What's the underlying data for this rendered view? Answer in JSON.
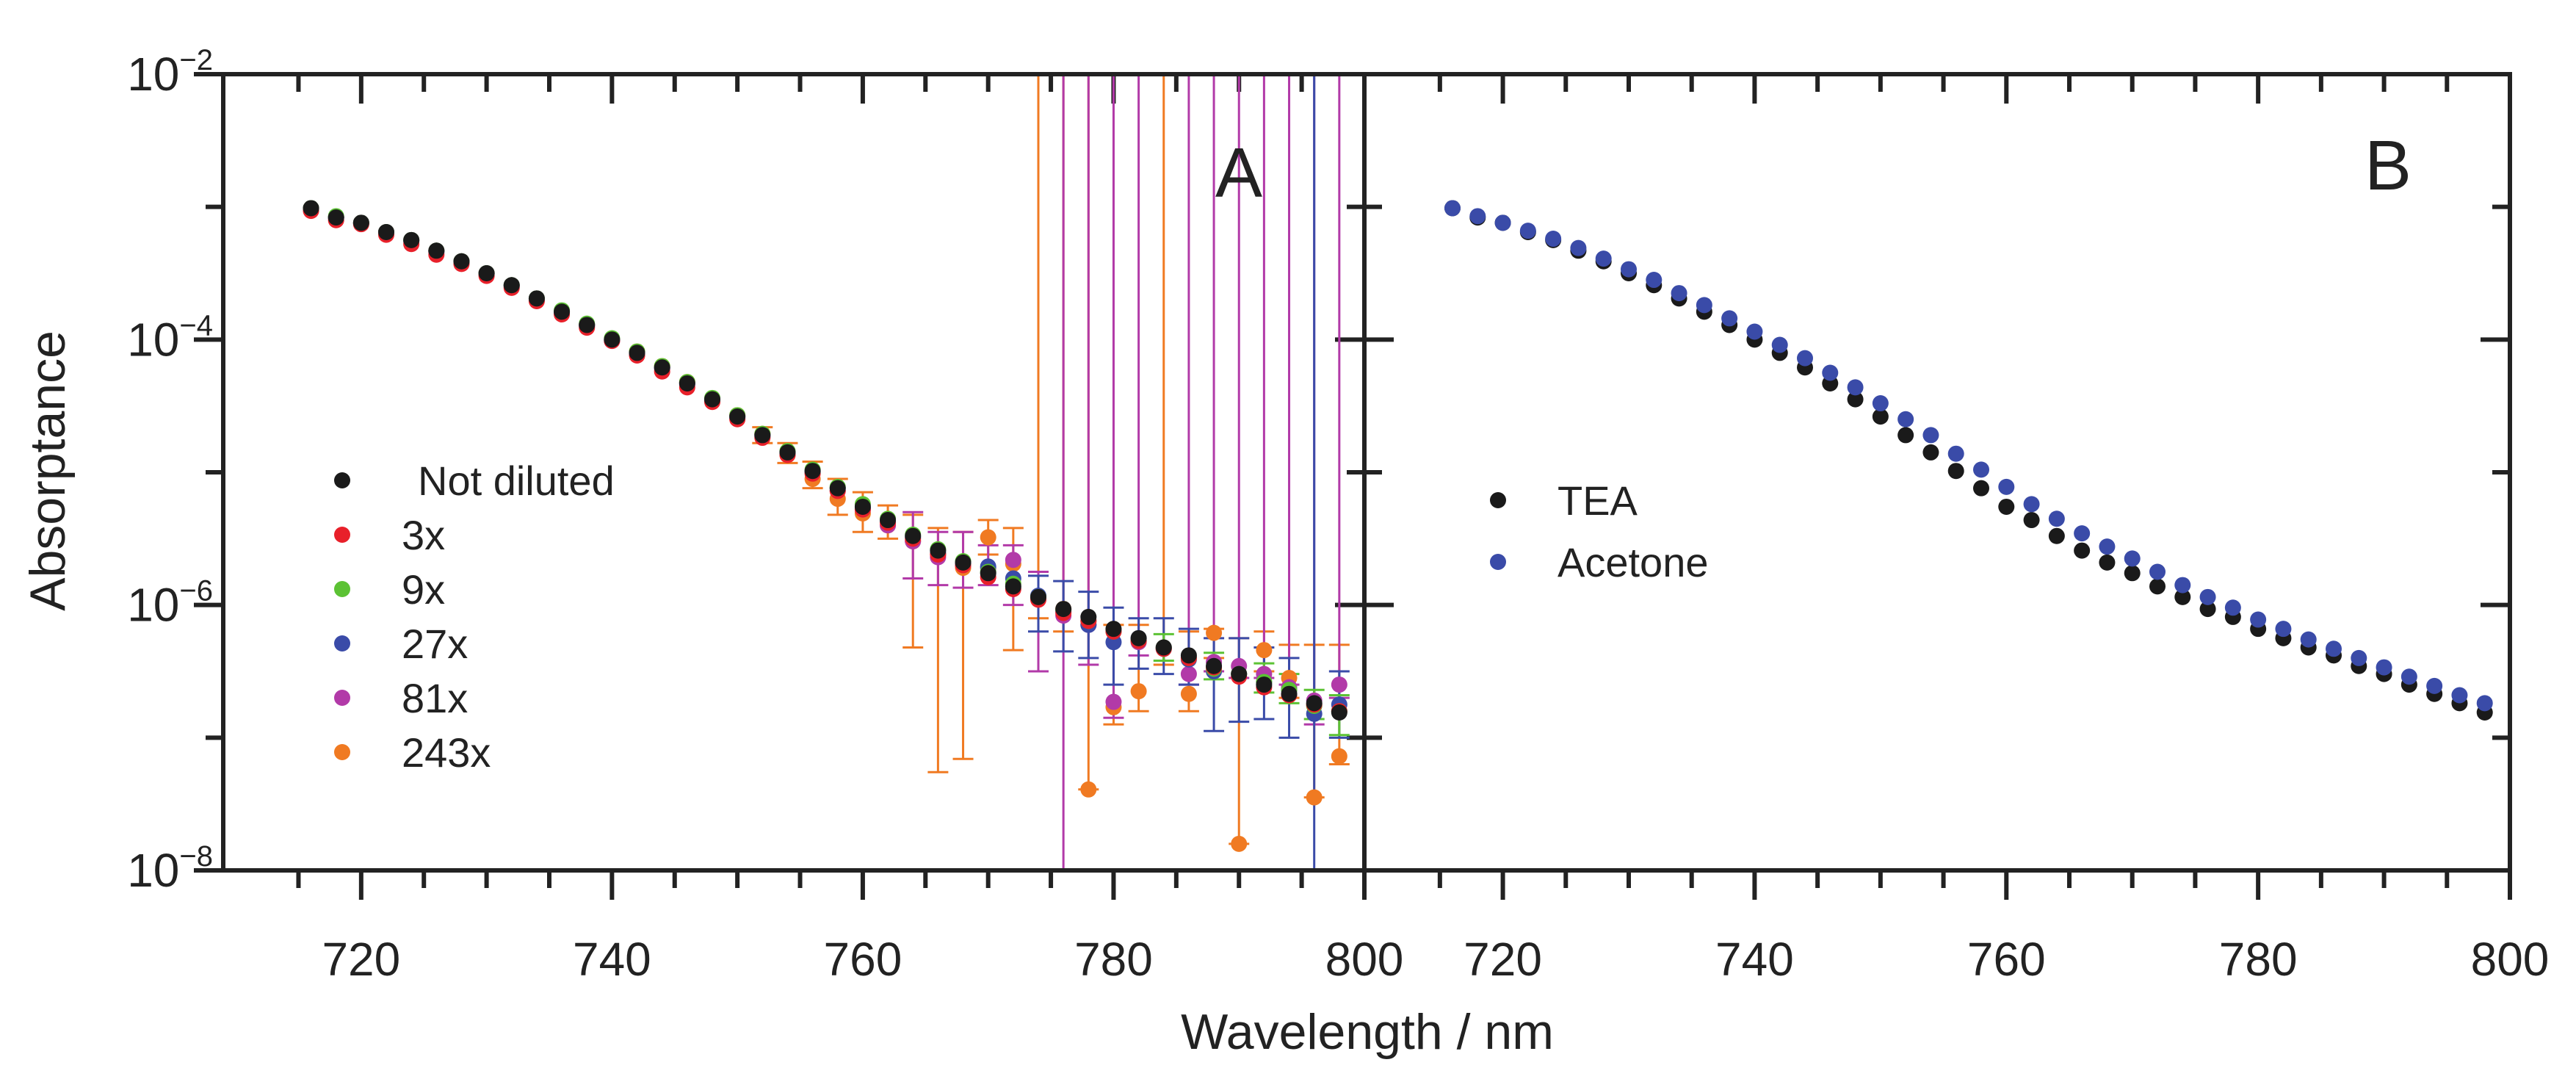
{
  "chart_data": [
    {
      "panel": "A",
      "type": "scatter",
      "panel_label": "A",
      "ylabel": "Absorptance",
      "xlabel": "Wavelength / nm",
      "yscale": "log",
      "xlim": [
        709,
        800
      ],
      "ylim": [
        1e-08,
        0.01
      ],
      "x_ticks": [
        720,
        740,
        760,
        780,
        800
      ],
      "x_tick_labels": [
        "720",
        "740",
        "760",
        "780",
        "800"
      ],
      "y_ticks": [
        {
          "value": 0.01,
          "base": "10",
          "exp": "−2"
        },
        {
          "value": 0.0001,
          "base": "10",
          "exp": "−4"
        },
        {
          "value": 1e-06,
          "base": "10",
          "exp": "−6"
        },
        {
          "value": 1e-08,
          "base": "10",
          "exp": "−8"
        }
      ],
      "legend_placement": "middle-left",
      "x_start": 716,
      "x_step": 2,
      "series": [
        {
          "name": "Not diluted",
          "color": "#1a1a1a",
          "log10_values": [
            -3.01,
            -3.08,
            -3.12,
            -3.19,
            -3.25,
            -3.33,
            -3.41,
            -3.5,
            -3.59,
            -3.69,
            -3.79,
            -3.89,
            -4.0,
            -4.1,
            -4.21,
            -4.33,
            -4.45,
            -4.58,
            -4.72,
            -4.85,
            -4.99,
            -5.12,
            -5.26,
            -5.36,
            -5.48,
            -5.59,
            -5.68,
            -5.76,
            -5.86,
            -5.94,
            -6.03,
            -6.09,
            -6.18,
            -6.25,
            -6.32,
            -6.38,
            -6.46,
            -6.52,
            -6.6,
            -6.67,
            -6.74,
            -6.81
          ]
        },
        {
          "name": "3x",
          "color": "#e8202a",
          "log10_values": [
            -3.03,
            -3.1,
            -3.13,
            -3.21,
            -3.28,
            -3.36,
            -3.43,
            -3.52,
            -3.61,
            -3.71,
            -3.81,
            -3.91,
            -4.01,
            -4.12,
            -4.24,
            -4.36,
            -4.47,
            -4.6,
            -4.74,
            -4.87,
            -5.01,
            -5.14,
            -5.28,
            -5.38,
            -5.5,
            -5.62,
            -5.7,
            -5.79,
            -5.88,
            -5.96,
            -6.06,
            -6.12,
            -6.2,
            -6.27,
            -6.33,
            -6.4,
            -6.47,
            -6.54,
            -6.62,
            -6.68,
            -6.75,
            -6.8
          ]
        },
        {
          "name": "9x",
          "color": "#5cc234",
          "log10_values": [
            -3.01,
            -3.07,
            -3.12,
            -3.19,
            -3.25,
            -3.33,
            -3.41,
            -3.5,
            -3.59,
            -3.69,
            -3.78,
            -3.88,
            -3.99,
            -4.09,
            -4.2,
            -4.32,
            -4.44,
            -4.57,
            -4.71,
            -4.84,
            -4.98,
            -5.11,
            -5.24,
            -5.35,
            -5.47,
            -5.58,
            -5.67,
            -5.75,
            -5.84,
            -5.94,
            -6.04,
            -6.12,
            -6.2,
            -6.27,
            -6.32,
            -6.4,
            -6.48,
            -6.52,
            -6.58,
            -6.64,
            -6.76,
            -6.8
          ],
          "err_log10": {
            "34": [
              -6.42,
              -6.22
            ],
            "36": [
              -6.56,
              -6.36
            ],
            "38": [
              -6.66,
              -6.44
            ],
            "39": [
              -6.74,
              -6.52
            ],
            "40": [
              -6.86,
              -6.64
            ],
            "41": [
              -6.98,
              -6.68
            ]
          }
        },
        {
          "name": "27x",
          "color": "#3a4ba8",
          "log10_values": [
            -3.01,
            -3.08,
            -3.12,
            -3.19,
            -3.25,
            -3.33,
            -3.41,
            -3.5,
            -3.59,
            -3.69,
            -3.79,
            -3.89,
            -4.0,
            -4.1,
            -4.21,
            -4.33,
            -4.45,
            -4.58,
            -4.72,
            -4.85,
            -4.99,
            -5.12,
            -5.27,
            -5.37,
            -5.49,
            -5.61,
            -5.69,
            -5.71,
            -5.8,
            -5.93,
            -6.05,
            -6.15,
            -6.28,
            -6.25,
            -6.33,
            -6.41,
            -6.5,
            -6.52,
            -6.58,
            -6.64,
            -6.82,
            -6.75
          ],
          "err_log10": {
            "29": [
              -6.2,
              -5.78
            ],
            "30": [
              -6.35,
              -5.82
            ],
            "31": [
              -6.4,
              -5.9
            ],
            "32": [
              -6.6,
              -6.02
            ],
            "33": [
              -6.48,
              -6.1
            ],
            "34": [
              -6.52,
              -6.1
            ],
            "35": [
              -6.6,
              -6.18
            ],
            "36": [
              -6.95,
              -6.25
            ],
            "37": [
              -6.88,
              -6.25
            ],
            "38": [
              -6.86,
              -6.32
            ],
            "39": [
              -7.0,
              -6.4
            ],
            "40": [
              -1.0,
              -9.0
            ],
            "41": [
              -7.0,
              -6.5
            ]
          }
        },
        {
          "name": "81x",
          "color": "#b23aa8",
          "log10_values": [
            -3.02,
            -3.08,
            -3.12,
            -3.19,
            -3.26,
            -3.34,
            -3.42,
            -3.51,
            -3.6,
            -3.7,
            -3.8,
            -3.9,
            -4.01,
            -4.11,
            -4.22,
            -4.34,
            -4.46,
            -4.59,
            -4.73,
            -4.86,
            -5.0,
            -5.14,
            -5.28,
            -5.4,
            -5.52,
            -5.64,
            -5.7,
            -5.72,
            -5.66,
            -5.94,
            -6.08,
            -6.15,
            -6.73,
            -6.28,
            -6.32,
            -6.52,
            -6.43,
            -6.46,
            -6.52,
            -6.62,
            -6.72,
            -6.6
          ],
          "err_log10": {
            "24": [
              -5.8,
              -5.3
            ],
            "25": [
              -5.85,
              -5.45
            ],
            "26": [
              -5.87,
              -5.45
            ],
            "27": [
              -5.85,
              -5.55
            ],
            "28": [
              -6.0,
              -5.55
            ],
            "29": [
              -6.5,
              -5.75
            ],
            "30": [
              -9.0,
              -1.0
            ],
            "31": [
              -6.45,
              -1.0
            ],
            "32": [
              -6.85,
              -1.0
            ],
            "33": [
              -6.38,
              -1.0
            ],
            "35": [
              -6.6,
              -1.0
            ],
            "36": [
              -6.5,
              -1.0
            ],
            "37": [
              -6.55,
              -1.0
            ],
            "38": [
              -6.55,
              -1.0
            ],
            "39": [
              -6.6,
              -1.0
            ],
            "40": [
              -6.9,
              -1.0
            ],
            "41": [
              -6.7,
              -1.0
            ]
          }
        },
        {
          "name": "243x",
          "color": "#f07a22",
          "log10_values": [
            -3.01,
            -3.08,
            -3.12,
            -3.19,
            -3.25,
            -3.33,
            -3.41,
            -3.5,
            -3.59,
            -3.69,
            -3.79,
            -3.89,
            -4.0,
            -4.09,
            -4.2,
            -4.32,
            -4.45,
            -4.57,
            -4.71,
            -4.87,
            -5.05,
            -5.2,
            -5.31,
            -5.4,
            -5.52,
            -5.62,
            -5.72,
            -5.49,
            -5.69,
            -5.94,
            -6.03,
            -7.39,
            -6.77,
            -6.65,
            -6.33,
            -6.67,
            -6.21,
            -7.8,
            -6.34,
            -6.55,
            -7.45,
            -7.14
          ],
          "err_log10": {
            "18": [
              -4.78,
              -4.66
            ],
            "19": [
              -4.93,
              -4.78
            ],
            "20": [
              -5.12,
              -4.92
            ],
            "21": [
              -5.32,
              -5.05
            ],
            "22": [
              -5.45,
              -5.15
            ],
            "23": [
              -5.5,
              -5.25
            ],
            "24": [
              -6.32,
              -5.32
            ],
            "25": [
              -7.26,
              -5.42
            ],
            "26": [
              -7.16,
              -5.45
            ],
            "27": [
              -5.62,
              -5.36
            ],
            "28": [
              -6.34,
              -5.42
            ],
            "29": [
              -6.1,
              -1.0
            ],
            "30": [
              -6.2,
              -1.0
            ],
            "31": [
              -7.39,
              -1.0
            ],
            "32": [
              -6.9,
              -6.15
            ],
            "33": [
              -6.8,
              -6.15
            ],
            "34": [
              -6.45,
              -1.0
            ],
            "35": [
              -6.8,
              -6.2
            ],
            "36": [
              -6.4,
              -6.18
            ],
            "37": [
              -7.8,
              -6.25
            ],
            "38": [
              -6.5,
              -6.2
            ],
            "39": [
              -6.7,
              -6.3
            ],
            "40": [
              -7.45,
              -6.3
            ],
            "41": [
              -7.2,
              -6.3
            ]
          }
        }
      ]
    },
    {
      "panel": "B",
      "type": "scatter",
      "panel_label": "B",
      "yscale": "log",
      "xlim": [
        709,
        800
      ],
      "ylim": [
        1e-08,
        0.01
      ],
      "x_ticks": [
        720,
        740,
        760,
        780,
        800
      ],
      "x_tick_labels": [
        "720",
        "740",
        "760",
        "780",
        "800"
      ],
      "legend_placement": "middle-left",
      "x_start": 716,
      "x_step": 2,
      "series": [
        {
          "name": "TEA",
          "color": "#1a1a1a",
          "log10_values": [
            -3.01,
            -3.08,
            -3.12,
            -3.19,
            -3.25,
            -3.33,
            -3.41,
            -3.5,
            -3.59,
            -3.69,
            -3.79,
            -3.89,
            -4.0,
            -4.1,
            -4.21,
            -4.33,
            -4.45,
            -4.58,
            -4.72,
            -4.85,
            -4.99,
            -5.12,
            -5.26,
            -5.36,
            -5.48,
            -5.59,
            -5.68,
            -5.76,
            -5.86,
            -5.94,
            -6.03,
            -6.09,
            -6.18,
            -6.25,
            -6.32,
            -6.38,
            -6.46,
            -6.52,
            -6.6,
            -6.67,
            -6.74,
            -6.81
          ]
        },
        {
          "name": "Acetone",
          "color": "#3a4ba8",
          "log10_values": [
            -3.01,
            -3.07,
            -3.12,
            -3.18,
            -3.24,
            -3.31,
            -3.39,
            -3.47,
            -3.55,
            -3.65,
            -3.74,
            -3.84,
            -3.94,
            -4.04,
            -4.14,
            -4.25,
            -4.36,
            -4.48,
            -4.6,
            -4.72,
            -4.86,
            -4.98,
            -5.11,
            -5.24,
            -5.35,
            -5.46,
            -5.56,
            -5.65,
            -5.75,
            -5.85,
            -5.94,
            -6.02,
            -6.11,
            -6.18,
            -6.26,
            -6.33,
            -6.4,
            -6.47,
            -6.54,
            -6.61,
            -6.68,
            -6.74
          ]
        }
      ]
    }
  ]
}
